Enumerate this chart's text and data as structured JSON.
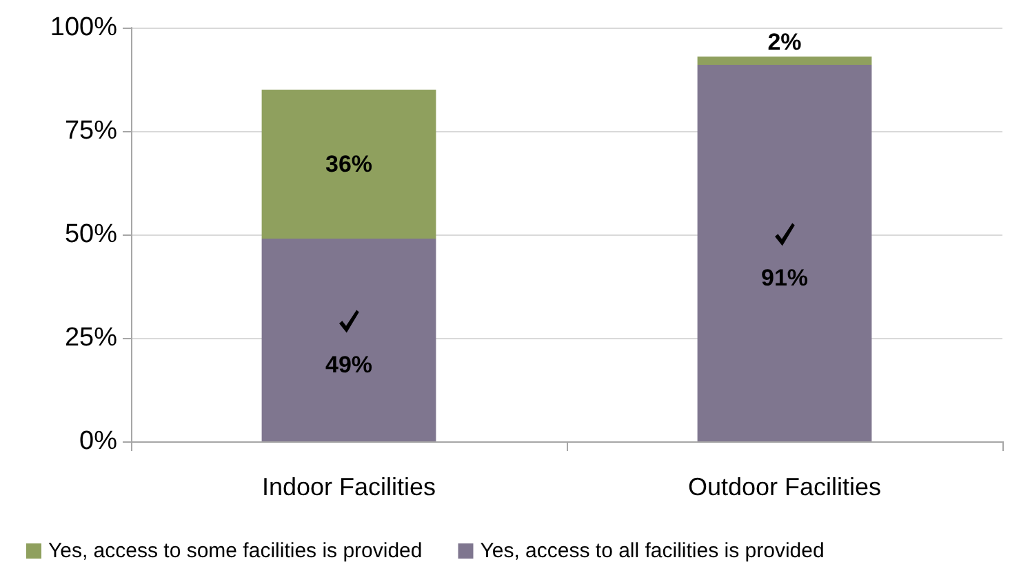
{
  "chart_data": {
    "type": "bar",
    "stacked": true,
    "categories": [
      "Indoor Facilities",
      "Outdoor Facilities"
    ],
    "series": [
      {
        "name": "Yes, access to all facilities is provided",
        "color": "#7f768f",
        "values": [
          49,
          91
        ],
        "value_labels": [
          "49%",
          "91%"
        ]
      },
      {
        "name": "Yes, access to some facilities is provided",
        "color": "#8fa05e",
        "values": [
          36,
          2
        ],
        "value_labels": [
          "36%",
          "2%"
        ]
      }
    ],
    "ylim": [
      0,
      100
    ],
    "yticks": [
      {
        "value": 0,
        "label": "0%"
      },
      {
        "value": 25,
        "label": "25%"
      },
      {
        "value": 50,
        "label": "50%"
      },
      {
        "value": 75,
        "label": "75%"
      },
      {
        "value": 100,
        "label": "100%"
      }
    ],
    "grid": "y",
    "legend": "bottom"
  }
}
